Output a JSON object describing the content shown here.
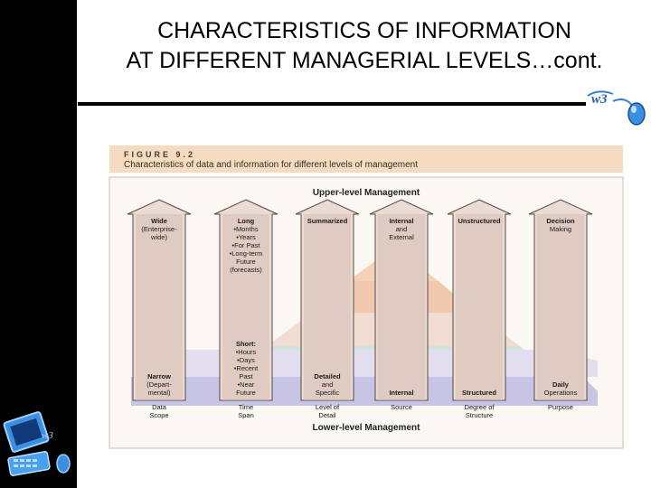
{
  "slide": {
    "title_line1": "CHARACTERISTICS OF INFORMATION",
    "title_line2": "AT DIFFERENT MANAGERIAL LEVELS…cont."
  },
  "figure": {
    "number": "FIGURE 9.2",
    "caption": "Characteristics of data and information for different levels of management",
    "upper_label": "Upper-level Management",
    "lower_label": "Lower-level Management"
  },
  "columns": [
    {
      "top": [
        "Wide",
        "(Enterprise-",
        "wide)"
      ],
      "bottom": [
        "Narrow",
        "(Depart-",
        "mental)"
      ],
      "base": [
        "Data",
        "Scope"
      ]
    },
    {
      "top": [
        "Long",
        "•Months",
        "•Years",
        "•For Past",
        "•Long-term",
        "Future",
        "(forecasts)"
      ],
      "bottom": [
        "Short:",
        "•Hours",
        "•Days",
        "•Recent",
        "Past",
        "•Near",
        "Future"
      ],
      "base": [
        "Time",
        "Span"
      ]
    },
    {
      "top": [
        "Summarized"
      ],
      "bottom": [
        "Detailed",
        "and",
        "Specific"
      ],
      "base": [
        "Level of",
        "Detail"
      ]
    },
    {
      "top": [
        "Internal",
        "and",
        "External"
      ],
      "bottom": [
        "Internal"
      ],
      "base": [
        "Source"
      ]
    },
    {
      "top": [
        "Unstructured"
      ],
      "bottom": [
        "Structured"
      ],
      "base": [
        "Degree of",
        "Structure"
      ]
    },
    {
      "top": [
        "Decision",
        "Making"
      ],
      "bottom": [
        "Daily",
        "Operations"
      ],
      "base": [
        "Purpose"
      ]
    }
  ],
  "logo_text": "w3"
}
